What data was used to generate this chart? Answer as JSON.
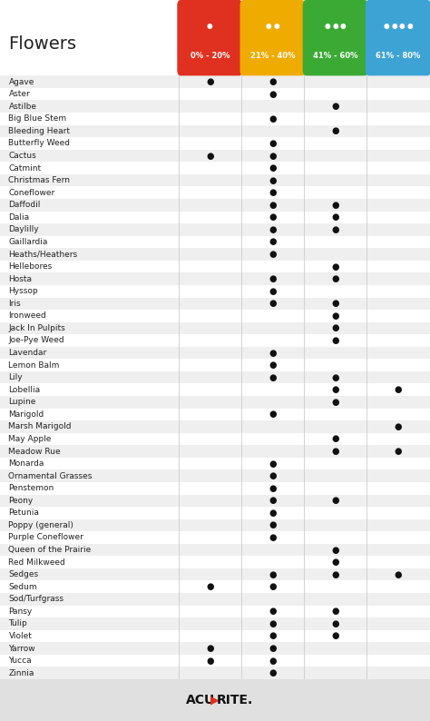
{
  "title": "Flowers",
  "columns": [
    "0% - 20%",
    "21% - 40%",
    "41% - 60%",
    "61% - 80%"
  ],
  "col_colors": [
    "#e03020",
    "#f0ab00",
    "#3aaa35",
    "#3ca3d4"
  ],
  "flowers": [
    "Agave",
    "Aster",
    "Astilbe",
    "Big Blue Stem",
    "Bleeding Heart",
    "Butterfly Weed",
    "Cactus",
    "Catmint",
    "Christmas Fern",
    "Coneflower",
    "Daffodil",
    "Dalia",
    "Daylilly",
    "Gaillardia",
    "Heaths/Heathers",
    "Hellebores",
    "Hosta",
    "Hyssop",
    "Iris",
    "Ironweed",
    "Jack In Pulpits",
    "Joe-Pye Weed",
    "Lavendar",
    "Lemon Balm",
    "Lily",
    "Lobellia",
    "Lupine",
    "Marigold",
    "Marsh Marigold",
    "May Apple",
    "Meadow Rue",
    "Monarda",
    "Ornamental Grasses",
    "Penstemon",
    "Peony",
    "Petunia",
    "Poppy (general)",
    "Purple Coneflower",
    "Queen of the Prairie",
    "Red Milkweed",
    "Sedges",
    "Sedum",
    "Sod/Turfgrass",
    "Pansy",
    "Tulip",
    "Violet",
    "Yarrow",
    "Yucca",
    "Zinnia"
  ],
  "dots": {
    "Agave": [
      1,
      1,
      0,
      0
    ],
    "Aster": [
      0,
      1,
      0,
      0
    ],
    "Astilbe": [
      0,
      0,
      1,
      0
    ],
    "Big Blue Stem": [
      0,
      1,
      0,
      0
    ],
    "Bleeding Heart": [
      0,
      0,
      1,
      0
    ],
    "Butterfly Weed": [
      0,
      1,
      0,
      0
    ],
    "Cactus": [
      1,
      1,
      0,
      0
    ],
    "Catmint": [
      0,
      1,
      0,
      0
    ],
    "Christmas Fern": [
      0,
      1,
      0,
      0
    ],
    "Coneflower": [
      0,
      1,
      0,
      0
    ],
    "Daffodil": [
      0,
      1,
      1,
      0
    ],
    "Dalia": [
      0,
      1,
      1,
      0
    ],
    "Daylilly": [
      0,
      1,
      1,
      0
    ],
    "Gaillardia": [
      0,
      1,
      0,
      0
    ],
    "Heaths/Heathers": [
      0,
      1,
      0,
      0
    ],
    "Hellebores": [
      0,
      0,
      1,
      0
    ],
    "Hosta": [
      0,
      1,
      1,
      0
    ],
    "Hyssop": [
      0,
      1,
      0,
      0
    ],
    "Iris": [
      0,
      1,
      1,
      0
    ],
    "Ironweed": [
      0,
      0,
      1,
      0
    ],
    "Jack In Pulpits": [
      0,
      0,
      1,
      0
    ],
    "Joe-Pye Weed": [
      0,
      0,
      1,
      0
    ],
    "Lavendar": [
      0,
      1,
      0,
      0
    ],
    "Lemon Balm": [
      0,
      1,
      0,
      0
    ],
    "Lily": [
      0,
      1,
      1,
      0
    ],
    "Lobellia": [
      0,
      0,
      1,
      1
    ],
    "Lupine": [
      0,
      0,
      1,
      0
    ],
    "Marigold": [
      0,
      1,
      0,
      0
    ],
    "Marsh Marigold": [
      0,
      0,
      0,
      1
    ],
    "May Apple": [
      0,
      0,
      1,
      0
    ],
    "Meadow Rue": [
      0,
      0,
      1,
      1
    ],
    "Monarda": [
      0,
      1,
      0,
      0
    ],
    "Ornamental Grasses": [
      0,
      1,
      0,
      0
    ],
    "Penstemon": [
      0,
      1,
      0,
      0
    ],
    "Peony": [
      0,
      1,
      1,
      0
    ],
    "Petunia": [
      0,
      1,
      0,
      0
    ],
    "Poppy (general)": [
      0,
      1,
      0,
      0
    ],
    "Purple Coneflower": [
      0,
      1,
      0,
      0
    ],
    "Queen of the Prairie": [
      0,
      0,
      1,
      0
    ],
    "Red Milkweed": [
      0,
      0,
      1,
      0
    ],
    "Sedges": [
      0,
      1,
      1,
      1
    ],
    "Sedum": [
      1,
      1,
      0,
      0
    ],
    "Sod/Turfgrass": [
      0,
      0,
      0,
      0
    ],
    "Pansy": [
      0,
      1,
      1,
      0
    ],
    "Tulip": [
      0,
      1,
      1,
      0
    ],
    "Violet": [
      0,
      1,
      1,
      0
    ],
    "Yarrow": [
      1,
      1,
      0,
      0
    ],
    "Yucca": [
      1,
      1,
      0,
      0
    ],
    "Zinnia": [
      0,
      1,
      0,
      0
    ]
  },
  "bg_color": "#ffffff",
  "row_alt_color": "#efefef",
  "row_color": "#ffffff",
  "footer_bg": "#e0e0e0",
  "dot_color": "#111111",
  "acurite_text_color": "#111111",
  "acurite_arrow_color": "#e03020"
}
